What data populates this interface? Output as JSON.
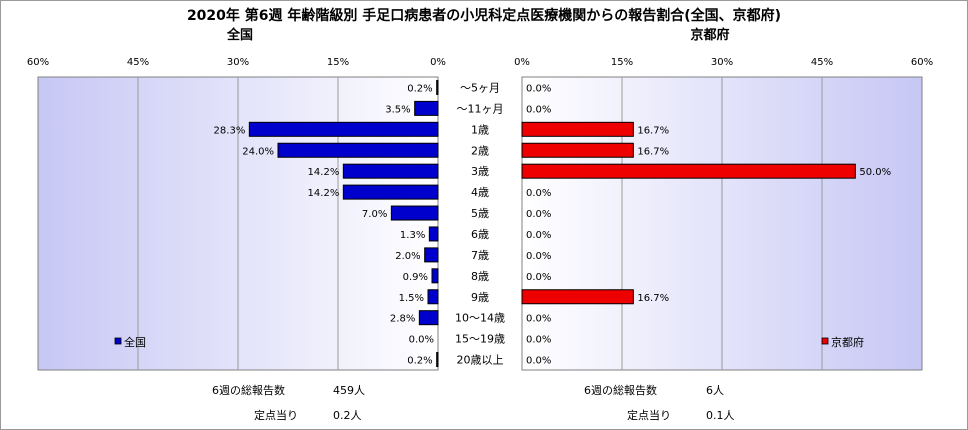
{
  "chart_data": {
    "title": "2020年 第6週 年齢階級別 手足口病患者の小児科定点医療機関からの報告割合(全国、京都府)",
    "type": "bar",
    "categories": [
      "～5ヶ月",
      "～11ヶ月",
      "1歳",
      "2歳",
      "3歳",
      "4歳",
      "5歳",
      "6歳",
      "7歳",
      "8歳",
      "9歳",
      "10～14歳",
      "15～19歳",
      "20歳以上"
    ],
    "axis_ticks": [
      "0%",
      "15%",
      "30%",
      "45%",
      "60%"
    ],
    "xlim": [
      0,
      60
    ],
    "grid": true,
    "panels": [
      {
        "key": "national",
        "panel_title": "全国",
        "legend": "全国",
        "legend_position": "bottom-left",
        "direction": "left",
        "color": "#0000cc",
        "values": [
          0.2,
          3.5,
          28.3,
          24.0,
          14.2,
          14.2,
          7.0,
          1.3,
          2.0,
          0.9,
          1.5,
          2.8,
          0.0,
          0.2
        ],
        "labels": [
          "0.2%",
          "3.5%",
          "28.3%",
          "24.0%",
          "14.2%",
          "14.2%",
          "7.0%",
          "1.3%",
          "2.0%",
          "0.9%",
          "1.5%",
          "2.8%",
          "0.0%",
          "0.2%"
        ]
      },
      {
        "key": "kyoto",
        "panel_title": "京都府",
        "legend": "京都府",
        "legend_position": "bottom-right",
        "direction": "right",
        "color": "#ee0000",
        "values": [
          0.0,
          0.0,
          16.7,
          16.7,
          50.0,
          0.0,
          0.0,
          0.0,
          0.0,
          0.0,
          16.7,
          0.0,
          0.0,
          0.0
        ],
        "labels": [
          "0.0%",
          "0.0%",
          "16.7%",
          "16.7%",
          "50.0%",
          "0.0%",
          "0.0%",
          "0.0%",
          "0.0%",
          "0.0%",
          "16.7%",
          "0.0%",
          "0.0%",
          "0.0%"
        ]
      }
    ]
  },
  "footer": {
    "national": {
      "total_label": "6週の総報告数",
      "total_value": "459人",
      "per_label": "定点当り",
      "per_value": "0.2人"
    },
    "kyoto": {
      "total_label": "6週の総報告数",
      "total_value": "6人",
      "per_label": "定点当り",
      "per_value": "0.1人"
    }
  }
}
